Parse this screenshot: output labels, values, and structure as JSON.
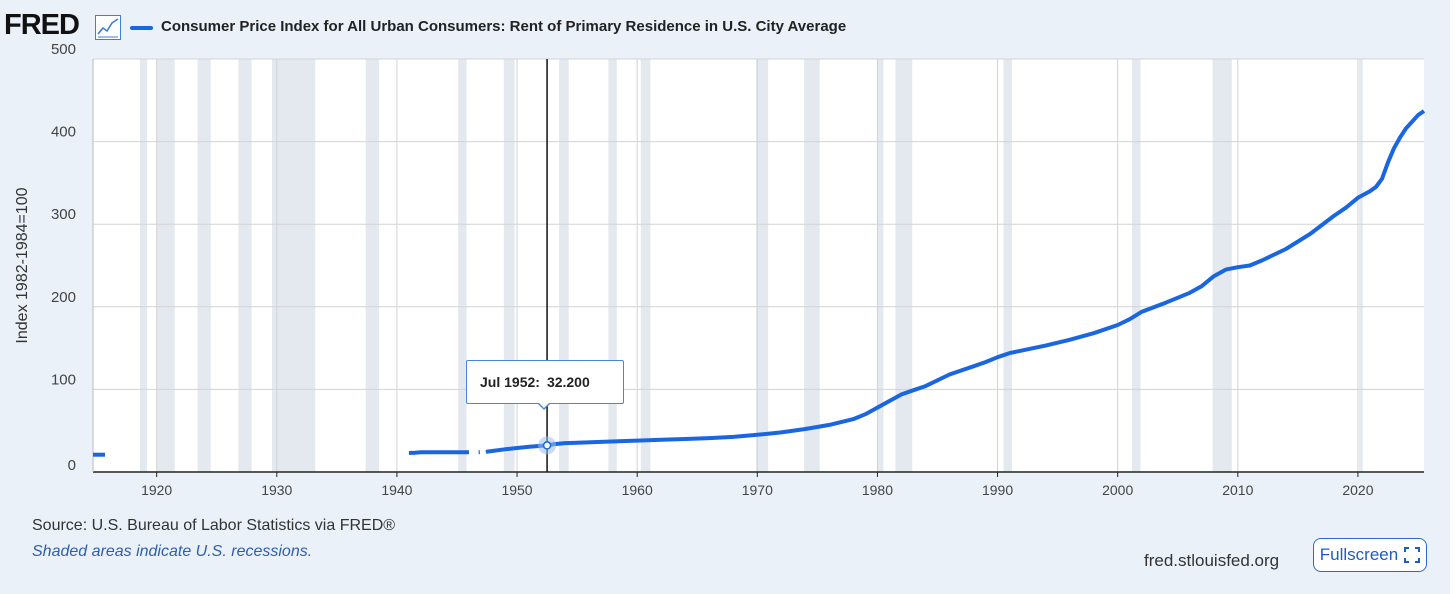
{
  "header": {
    "logo_text": "FRED",
    "logo_icon": "line-chart-icon",
    "series_title": "Consumer Price Index for All Urban Consumers: Rent of Primary Residence in U.S. City Average"
  },
  "colors": {
    "series": "#1a66e0",
    "recession_shade": "#e4e8ef",
    "background": "#ebf1f9",
    "plot_background": "#ffffff",
    "gridline": "#d3d3d3"
  },
  "tooltip": {
    "date_label": "Jul 1952:",
    "value_label": "32.200"
  },
  "footer": {
    "source": "Source: U.S. Bureau of Labor Statistics via FRED®",
    "note": "Shaded areas indicate U.S. recessions.",
    "site": "fred.stlouisfed.org",
    "fullscreen_label": "Fullscreen",
    "fullscreen_icon": "expand-icon"
  },
  "chart_data": {
    "type": "line",
    "title": "Consumer Price Index for All Urban Consumers: Rent of Primary Residence in U.S. City Average",
    "xlabel": "",
    "ylabel": "Index 1982-1984=100",
    "xlim": [
      1914.7,
      2025.5
    ],
    "ylim": [
      0,
      500
    ],
    "x_ticks": [
      1920,
      1930,
      1940,
      1950,
      1960,
      1970,
      1980,
      1990,
      2000,
      2010,
      2020
    ],
    "x_tick_labels": [
      "1920",
      "1930",
      "1940",
      "1950",
      "1960",
      "1970",
      "1980",
      "1990",
      "2000",
      "2010",
      "2020"
    ],
    "y_ticks": [
      0,
      100,
      200,
      300,
      400,
      500
    ],
    "y_tick_labels": [
      "0",
      "100",
      "200",
      "300",
      "400",
      "500"
    ],
    "grid": true,
    "highlight": {
      "x": 1952.5,
      "y": 32.2,
      "label": "Jul 1952: 32.200"
    },
    "recessions": [
      [
        1918.6,
        1919.2
      ],
      [
        1920.0,
        1921.5
      ],
      [
        1923.4,
        1924.5
      ],
      [
        1926.8,
        1927.9
      ],
      [
        1929.6,
        1933.2
      ],
      [
        1937.4,
        1938.5
      ],
      [
        1945.1,
        1945.8
      ],
      [
        1948.9,
        1949.8
      ],
      [
        1953.5,
        1954.3
      ],
      [
        1957.6,
        1958.3
      ],
      [
        1960.3,
        1961.1
      ],
      [
        1969.9,
        1970.9
      ],
      [
        1973.9,
        1975.2
      ],
      [
        1980.0,
        1980.5
      ],
      [
        1981.5,
        1982.9
      ],
      [
        1990.5,
        1991.2
      ],
      [
        2001.2,
        2001.9
      ],
      [
        2007.9,
        2009.5
      ],
      [
        2020.1,
        2020.4
      ]
    ],
    "series": [
      {
        "name": "Consumer Price Index for All Urban Consumers: Rent of Primary Residence in U.S. City Average",
        "segments": [
          {
            "x": [
              1914.7,
              1915.7
            ],
            "y": [
              21.0,
              21.0
            ]
          },
          {
            "x": [
              1941.0,
              1941.5,
              1942.0,
              1942.8,
              1944.0,
              1945.0,
              1946.0
            ],
            "y": [
              23.0,
              23.2,
              23.8,
              24.0,
              24.0,
              24.0,
              24.0
            ]
          },
          {
            "x": [
              1946.8,
              1946.9
            ],
            "y": [
              24.0,
              24.1
            ]
          },
          {
            "x": [
              1947.4,
              1948.0,
              1949.0,
              1950.0,
              1951.0,
              1952.5,
              1953.0,
              1954.0,
              1955.0,
              1957.0,
              1960.0,
              1962.0,
              1964.0,
              1966.0,
              1968.0,
              1970.0,
              1972.0,
              1974.0,
              1976.0,
              1978.0,
              1979.0,
              1980.0,
              1981.0,
              1982.0,
              1983.0,
              1984.0,
              1985.0,
              1986.0,
              1987.0,
              1988.0,
              1989.0,
              1990.0,
              1991.0,
              1992.0,
              1994.0,
              1996.0,
              1998.0,
              2000.0,
              2001.0,
              2002.0,
              2004.0,
              2006.0,
              2007.0,
              2008.0,
              2009.0,
              2010.0,
              2011.0,
              2012.0,
              2014.0,
              2016.0,
              2018.0,
              2019.0,
              2020.0,
              2021.0,
              2021.5,
              2022.0,
              2022.5,
              2023.0,
              2023.5,
              2024.0,
              2024.5,
              2025.0,
              2025.5
            ],
            "y": [
              24.5,
              25.5,
              27.5,
              29.0,
              30.5,
              32.2,
              33.5,
              35.0,
              35.5,
              36.5,
              38.0,
              39.0,
              40.0,
              41.0,
              42.5,
              45.0,
              48.0,
              52.0,
              57.0,
              64.0,
              70.0,
              78.0,
              86.0,
              94.0,
              99.0,
              104.0,
              111.0,
              118.0,
              123.0,
              128.0,
              133.0,
              139.0,
              144.0,
              147.0,
              153.0,
              160.0,
              168.0,
              178.0,
              185.0,
              194.0,
              205.0,
              217.0,
              225.0,
              237.0,
              245.0,
              248.0,
              250.0,
              256.0,
              270.0,
              288.0,
              310.0,
              320.0,
              332.0,
              340.0,
              345.0,
              355.0,
              375.0,
              392.0,
              405.0,
              416.0,
              424.0,
              432.0,
              437.0
            ]
          }
        ]
      }
    ]
  }
}
